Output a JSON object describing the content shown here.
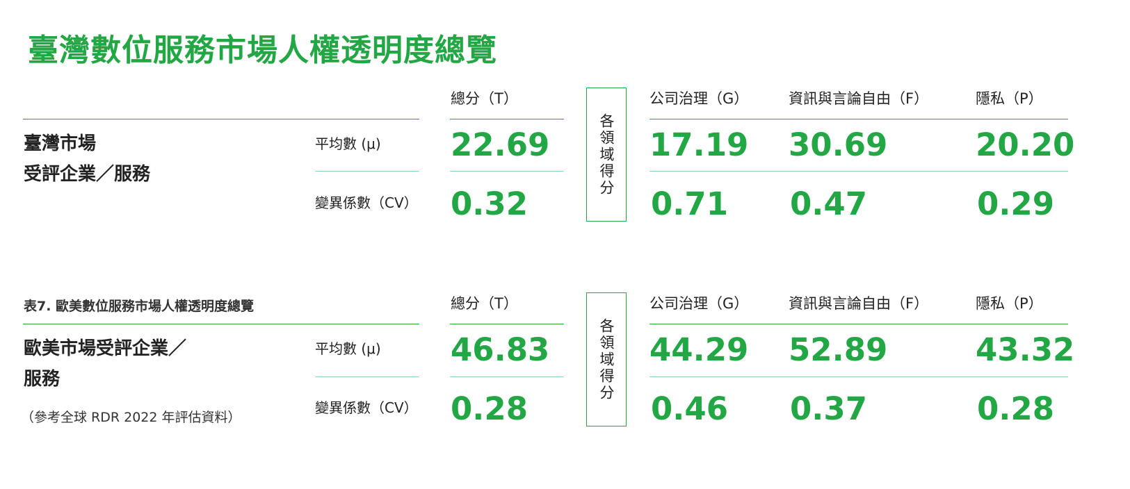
{
  "title": "臺灣數位服務市場人權透明度總覽",
  "caption": "表7. 歐美數位服務市場人權透明度總覽",
  "colors": {
    "accent": "#22a744",
    "divider": "#8fd4a2"
  },
  "columns": {
    "total": "總分（T）",
    "domain_label": "各領域得分",
    "governance": "公司治理（G）",
    "freedom": "資訊與言論自由（F）",
    "privacy": "隱私（P）"
  },
  "metrics": {
    "mean": "平均數 (μ)",
    "cv": "變異係數（CV）"
  },
  "sections": [
    {
      "row_title_line1": "臺灣市場",
      "row_title_line2": "受評企業／服務",
      "note": "",
      "mean": {
        "total": "22.69",
        "governance": "17.19",
        "freedom": "30.69",
        "privacy": "20.20"
      },
      "cv": {
        "total": "0.32",
        "governance": "0.71",
        "freedom": "0.47",
        "privacy": "0.29"
      }
    },
    {
      "row_title_line1": "歐美市場受評企業／",
      "row_title_line2": "服務",
      "note": "（參考全球 RDR 2022 年評估資料）",
      "mean": {
        "total": "46.83",
        "governance": "44.29",
        "freedom": "52.89",
        "privacy": "43.32"
      },
      "cv": {
        "total": "0.28",
        "governance": "0.46",
        "freedom": "0.37",
        "privacy": "0.28"
      }
    }
  ]
}
